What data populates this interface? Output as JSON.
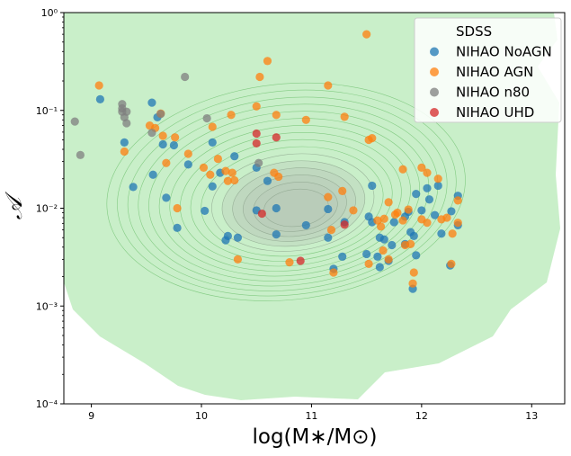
{
  "chart_data": {
    "type": "scatter",
    "xlabel": "log(M∗/M⊙)",
    "ylabel": "𝒜",
    "xlim": [
      8.75,
      13.3
    ],
    "ylim": [
      0.0001,
      1
    ],
    "yscale": "log",
    "x_ticks": [
      9,
      10,
      11,
      12,
      13
    ],
    "x_tick_labels": [
      "9",
      "10",
      "11",
      "12",
      "13"
    ],
    "y_ticks": [
      0.0001,
      0.001,
      0.01,
      0.1,
      1
    ],
    "y_tick_labels": [
      "10⁻⁴",
      "10⁻³",
      "10⁻²",
      "10⁻¹",
      "10⁰"
    ],
    "grid": false,
    "legend_position": "top-right",
    "background_density": {
      "name": "SDSS",
      "type": "density-contours",
      "color": "#c9efc9",
      "line_color": "#6bbf6b",
      "peak": [
        10.85,
        0.015
      ]
    },
    "series": [
      {
        "name": "NIHAO NoAGN",
        "color": "#1f77b4",
        "points": [
          [
            9.08,
            0.13
          ],
          [
            9.3,
            0.047
          ],
          [
            9.38,
            0.0165
          ],
          [
            9.55,
            0.12
          ],
          [
            9.56,
            0.022
          ],
          [
            9.6,
            0.085
          ],
          [
            9.65,
            0.045
          ],
          [
            9.68,
            0.0128
          ],
          [
            9.75,
            0.044
          ],
          [
            9.78,
            0.0063
          ],
          [
            9.88,
            0.028
          ],
          [
            10.03,
            0.0094
          ],
          [
            10.1,
            0.0167
          ],
          [
            10.1,
            0.047
          ],
          [
            10.17,
            0.023
          ],
          [
            10.22,
            0.0047
          ],
          [
            10.24,
            0.0052
          ],
          [
            10.3,
            0.034
          ],
          [
            10.33,
            0.005
          ],
          [
            10.5,
            0.026
          ],
          [
            10.5,
            0.0095
          ],
          [
            10.6,
            0.019
          ],
          [
            10.68,
            0.01
          ],
          [
            10.68,
            0.0054
          ],
          [
            10.95,
            0.0067
          ],
          [
            11.15,
            0.0098
          ],
          [
            11.15,
            0.005
          ],
          [
            11.2,
            0.0024
          ],
          [
            11.28,
            0.0032
          ],
          [
            11.3,
            0.0072
          ],
          [
            11.5,
            0.0034
          ],
          [
            11.52,
            0.0082
          ],
          [
            11.55,
            0.0072
          ],
          [
            11.55,
            0.017
          ],
          [
            11.6,
            0.0032
          ],
          [
            11.62,
            0.0025
          ],
          [
            11.62,
            0.005
          ],
          [
            11.66,
            0.0048
          ],
          [
            11.7,
            0.0029
          ],
          [
            11.73,
            0.0042
          ],
          [
            11.75,
            0.0072
          ],
          [
            11.85,
            0.0082
          ],
          [
            11.85,
            0.0043
          ],
          [
            11.88,
            0.0092
          ],
          [
            11.9,
            0.0057
          ],
          [
            11.92,
            0.0015
          ],
          [
            11.93,
            0.0052
          ],
          [
            11.95,
            0.0033
          ],
          [
            11.95,
            0.014
          ],
          [
            12.0,
            0.0095
          ],
          [
            12.05,
            0.016
          ],
          [
            12.07,
            0.0123
          ],
          [
            12.12,
            0.0085
          ],
          [
            12.15,
            0.017
          ],
          [
            12.18,
            0.0055
          ],
          [
            12.26,
            0.0026
          ],
          [
            12.27,
            0.0093
          ],
          [
            12.33,
            0.0067
          ],
          [
            12.33,
            0.0134
          ]
        ]
      },
      {
        "name": "NIHAO AGN",
        "color": "#ff7f0e",
        "points": [
          [
            9.07,
            0.18
          ],
          [
            9.3,
            0.038
          ],
          [
            9.53,
            0.07
          ],
          [
            9.58,
            0.066
          ],
          [
            9.63,
            0.093
          ],
          [
            9.65,
            0.055
          ],
          [
            9.68,
            0.029
          ],
          [
            9.76,
            0.053
          ],
          [
            9.78,
            0.01
          ],
          [
            9.88,
            0.036
          ],
          [
            10.02,
            0.026
          ],
          [
            10.08,
            0.022
          ],
          [
            10.1,
            0.068
          ],
          [
            10.15,
            0.032
          ],
          [
            10.22,
            0.024
          ],
          [
            10.24,
            0.019
          ],
          [
            10.27,
            0.09
          ],
          [
            10.28,
            0.023
          ],
          [
            10.3,
            0.0193
          ],
          [
            10.33,
            0.003
          ],
          [
            10.5,
            0.11
          ],
          [
            10.53,
            0.22
          ],
          [
            10.6,
            0.32
          ],
          [
            10.66,
            0.023
          ],
          [
            10.68,
            0.09
          ],
          [
            10.7,
            0.021
          ],
          [
            10.8,
            0.0028
          ],
          [
            10.95,
            0.08
          ],
          [
            11.15,
            0.18
          ],
          [
            11.15,
            0.013
          ],
          [
            11.18,
            0.006
          ],
          [
            11.2,
            0.0022
          ],
          [
            11.28,
            0.015
          ],
          [
            11.3,
            0.086
          ],
          [
            11.38,
            0.0095
          ],
          [
            11.5,
            0.6
          ],
          [
            11.52,
            0.05
          ],
          [
            11.55,
            0.052
          ],
          [
            11.52,
            0.0027
          ],
          [
            11.6,
            0.0075
          ],
          [
            11.63,
            0.0065
          ],
          [
            11.66,
            0.0078
          ],
          [
            11.65,
            0.0037
          ],
          [
            11.7,
            0.0115
          ],
          [
            11.7,
            0.003
          ],
          [
            11.76,
            0.0086
          ],
          [
            11.78,
            0.009
          ],
          [
            11.83,
            0.025
          ],
          [
            11.83,
            0.0075
          ],
          [
            11.85,
            0.0042
          ],
          [
            11.88,
            0.0097
          ],
          [
            11.9,
            0.0043
          ],
          [
            11.93,
            0.0022
          ],
          [
            11.92,
            0.0017
          ],
          [
            12.0,
            0.026
          ],
          [
            12.0,
            0.0077
          ],
          [
            12.05,
            0.023
          ],
          [
            12.05,
            0.0071
          ],
          [
            12.15,
            0.02
          ],
          [
            12.18,
            0.0077
          ],
          [
            12.23,
            0.008
          ],
          [
            12.27,
            0.0027
          ],
          [
            12.28,
            0.0055
          ],
          [
            12.33,
            0.012
          ],
          [
            12.33,
            0.0071
          ]
        ]
      },
      {
        "name": "NIHAO n80",
        "color": "#7f7f7f",
        "points": [
          [
            8.85,
            0.077
          ],
          [
            8.9,
            0.035
          ],
          [
            9.28,
            0.105
          ],
          [
            9.28,
            0.116
          ],
          [
            9.28,
            0.097
          ],
          [
            9.3,
            0.085
          ],
          [
            9.32,
            0.097
          ],
          [
            9.32,
            0.074
          ],
          [
            9.55,
            0.059
          ],
          [
            9.63,
            0.092
          ],
          [
            9.85,
            0.22
          ],
          [
            10.05,
            0.083
          ],
          [
            10.52,
            0.029
          ]
        ]
      },
      {
        "name": "NIHAO UHD",
        "color": "#d62728",
        "points": [
          [
            10.5,
            0.058
          ],
          [
            10.5,
            0.046
          ],
          [
            10.55,
            0.0088
          ],
          [
            10.68,
            0.053
          ],
          [
            10.9,
            0.0029
          ],
          [
            11.3,
            0.0068
          ]
        ]
      }
    ],
    "legend": [
      "SDSS",
      "NIHAO NoAGN",
      "NIHAO AGN",
      "NIHAO n80",
      "NIHAO UHD"
    ]
  }
}
